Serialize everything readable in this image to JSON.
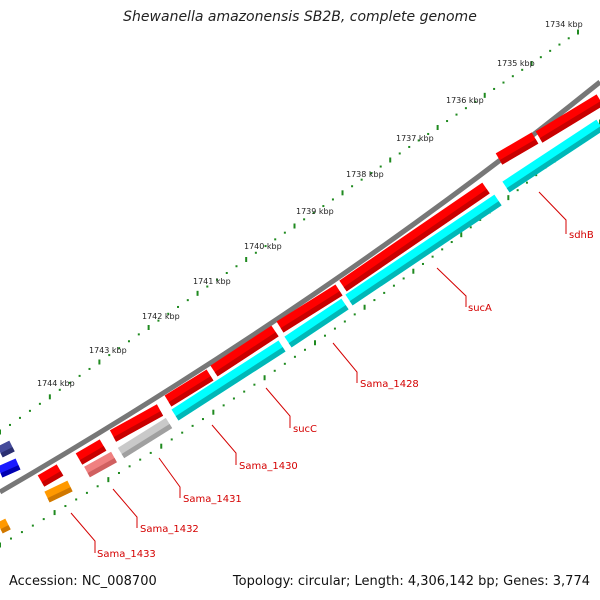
{
  "title": "Shewanella amazonensis SB2B, complete genome",
  "accession": "Accession: NC_008700",
  "summary": "Topology: circular; Length: 4,306,142 bp; Genes: 3,774",
  "colors": {
    "backbone": "#777777",
    "cds_forward": "#ff0000",
    "cds_reverse": "#00ffff",
    "label": "#d40000",
    "tick": "#1f8a1f"
  },
  "kbp_ticks": [
    "1734 kbp",
    "1735 kbp",
    "1736 kbp",
    "1737 kbp",
    "1738 kbp",
    "1739 kbp",
    "1740 kbp",
    "1741 kbp",
    "1742 kbp",
    "1743 kbp",
    "1744 kbp"
  ],
  "gene_labels": [
    "sdhB",
    "sucA",
    "Sama_1428",
    "sucC",
    "Sama_1430",
    "Sama_1431",
    "Sama_1432",
    "Sama_1433"
  ]
}
